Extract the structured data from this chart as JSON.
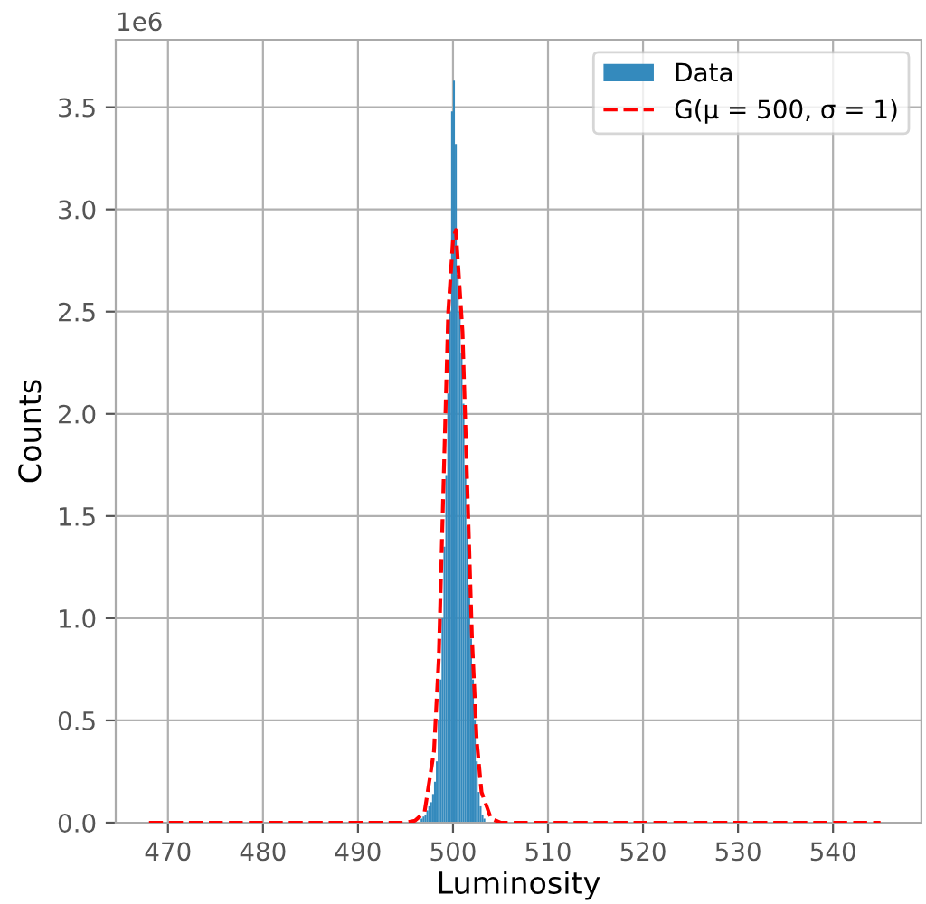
{
  "chart_data": {
    "type": "histogram",
    "xlabel": "Luminosity",
    "ylabel": "Counts",
    "annotations": [
      "1e6"
    ],
    "series": [
      {
        "name": "Data",
        "color": "#348abd",
        "bins": [
          496.0,
          496.2,
          496.4,
          496.6,
          496.8,
          497.0,
          497.2,
          497.4,
          497.6,
          497.8,
          498.0,
          498.2,
          498.4,
          498.6,
          498.8,
          499.0,
          499.2,
          499.4,
          499.6,
          499.8,
          500.0,
          500.2,
          500.4,
          500.6,
          500.8,
          501.0,
          501.2,
          501.4,
          501.6,
          501.8,
          502.0,
          502.2,
          502.4,
          502.6,
          502.8,
          503.0,
          503.2,
          503.4,
          503.6
        ],
        "values": [
          null,
          null,
          null,
          0.02,
          0.03,
          0.04,
          0.06,
          0.08,
          0.1,
          0.14,
          0.2,
          0.3,
          0.5,
          0.7,
          1.0,
          1.35,
          1.7,
          2.1,
          2.5,
          3.48,
          3.63,
          3.32,
          2.68,
          2.5,
          2.3,
          2.05,
          1.75,
          1.45,
          1.15,
          0.9,
          0.7,
          0.5,
          0.3,
          0.15,
          0.08,
          0.04,
          0.02,
          null
        ]
      },
      {
        "name": "G(μ = 500, σ = 1)",
        "type": "line",
        "color": "#ff0000",
        "line_style": "dashed",
        "x": [
          468,
          495,
          496,
          497,
          498,
          498.5,
          499,
          499.5,
          500,
          500.3,
          501,
          501.5,
          502,
          502.5,
          503,
          504,
          505,
          545
        ],
        "values": [
          0,
          0,
          0.01,
          0.05,
          0.35,
          0.8,
          1.65,
          2.5,
          2.85,
          2.9,
          2.4,
          1.65,
          0.9,
          0.4,
          0.15,
          0.02,
          0,
          0
        ]
      }
    ],
    "xlim": [
      464.5,
      549.3
    ],
    "ylim": [
      0,
      3.83
    ],
    "xticks": [
      470,
      480,
      490,
      500,
      510,
      520,
      530,
      540
    ],
    "yticks": [
      {
        "value": 0,
        "label": "0.0"
      },
      0.5,
      {
        "value": 1,
        "label": "1.0"
      },
      1.5,
      {
        "value": 2,
        "label": "2.0"
      },
      2.5,
      {
        "value": 3,
        "label": "3.0"
      },
      3.5
    ],
    "grid": true,
    "legend": "top right"
  }
}
